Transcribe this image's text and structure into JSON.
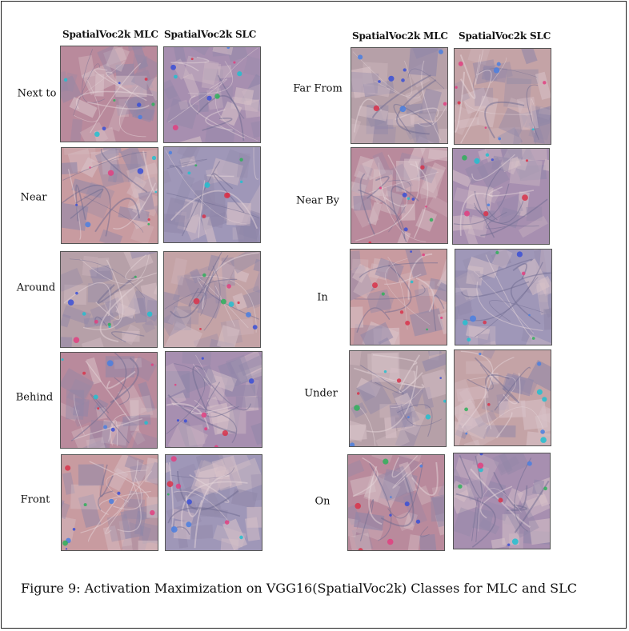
{
  "headers": {
    "left_mlc": "SpatialVoc2k MLC",
    "left_slc": "SpatialVoc2k SLC",
    "right_mlc": "SpatialVoc2k MLC",
    "right_slc": "SpatialVoc2k SLC"
  },
  "left_rows": [
    "Next to",
    "Near",
    "Around",
    "Behind",
    "Front"
  ],
  "right_rows": [
    "Far From",
    "Near By",
    "In",
    "Under",
    "On"
  ],
  "caption": "Figure 9: Activation Maximization on VGG16(SpatialVoc2k) Classes for MLC and SLC"
}
